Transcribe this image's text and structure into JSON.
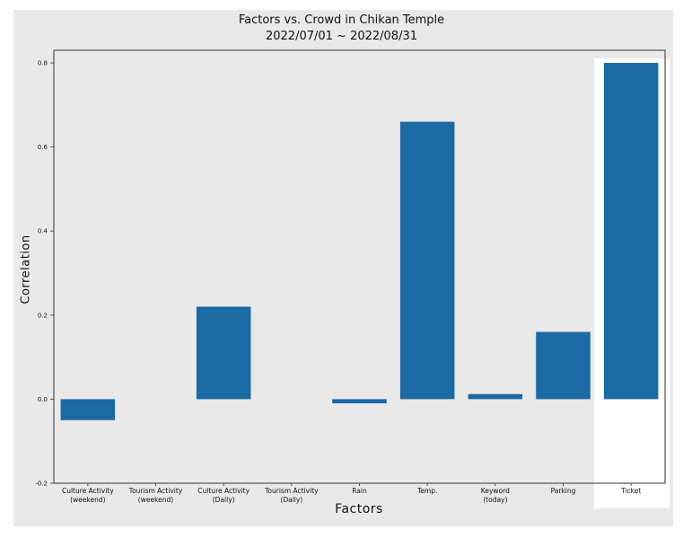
{
  "chart_data": {
    "type": "bar",
    "title": "Factors vs. Crowd in Chikan Temple",
    "subtitle": "2022/07/01 ~ 2022/08/31",
    "xlabel": "Factors",
    "ylabel": "Correlation",
    "categories": [
      [
        "Culture Activity",
        "(weekend)"
      ],
      [
        "Tourism Activity",
        "(weekend)"
      ],
      [
        "Culture Activity",
        "(Daily)"
      ],
      [
        "Tourism Activity",
        "(Daily)"
      ],
      [
        "Rain"
      ],
      [
        "Temp."
      ],
      [
        "Keyword",
        "(today)"
      ],
      [
        "Parking"
      ],
      [
        "Ticket"
      ]
    ],
    "values": [
      -0.05,
      0.0,
      0.22,
      0.0,
      -0.01,
      0.66,
      0.012,
      0.16,
      0.8
    ],
    "ylim": [
      -0.2,
      0.83
    ],
    "yticks": [
      "-0.2",
      "0.0",
      "0.2",
      "0.4",
      "0.6",
      "0.8"
    ],
    "grid": false,
    "highlighted_category": "Ticket",
    "colors": {
      "bar": "#1c6aa3",
      "figure_background": "#e9e9e9",
      "highlight": "#ffffff"
    }
  }
}
